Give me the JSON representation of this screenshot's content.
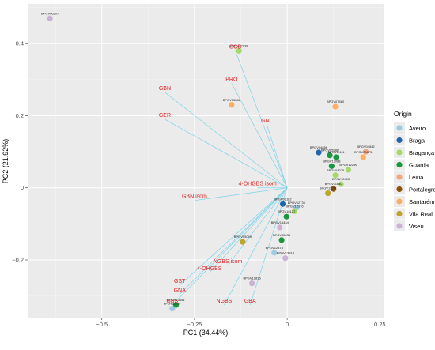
{
  "chart_data": {
    "type": "scatter",
    "subtype": "pca-biplot",
    "xlabel": "PC1 (34.44%)",
    "ylabel": "PC2 (21.92%)",
    "xlim": [
      -0.7,
      0.26
    ],
    "ylim": [
      -0.36,
      0.51
    ],
    "x_ticks": [
      -0.5,
      -0.25,
      0,
      0.25
    ],
    "x_tick_labels": [
      "−0.5",
      "−0.25",
      "0",
      "0.25"
    ],
    "y_ticks": [
      -0.2,
      0,
      0.2,
      0.4
    ],
    "y_tick_labels": [
      "−0.2",
      "0",
      "0.2",
      "0.4"
    ],
    "grid": true,
    "legend": {
      "title": "Origin",
      "position": "right",
      "entries": [
        {
          "name": "Aveiro",
          "color": "#9ecae1"
        },
        {
          "name": "Braga",
          "color": "#2166ac"
        },
        {
          "name": "Bragança",
          "color": "#a6d96a"
        },
        {
          "name": "Guarda",
          "color": "#1a9641"
        },
        {
          "name": "Leiria",
          "color": "#f4a582"
        },
        {
          "name": "Portalegre",
          "color": "#8c510a"
        },
        {
          "name": "Santarém",
          "color": "#fdae61"
        },
        {
          "name": "Vila Real",
          "color": "#bfa32a"
        },
        {
          "name": "Viseu",
          "color": "#cab2d6"
        }
      ]
    },
    "points": [
      {
        "label": "BPGV06207",
        "x": -0.64,
        "y": 0.47,
        "origin": "Viseu"
      },
      {
        "label": "BPGV12239",
        "x": -0.13,
        "y": 0.38,
        "origin": "Bragança"
      },
      {
        "label": "BPGV07480",
        "x": 0.13,
        "y": 0.225,
        "origin": "Santarém"
      },
      {
        "label": "BPGV05888",
        "x": -0.15,
        "y": 0.23,
        "origin": "Santarém"
      },
      {
        "label": "BPGV04856",
        "x": 0.085,
        "y": 0.098,
        "origin": "Braga"
      },
      {
        "label": "BPGV05980",
        "x": 0.115,
        "y": 0.09,
        "origin": "Guarda"
      },
      {
        "label": "BPGV11111",
        "x": 0.132,
        "y": 0.085,
        "origin": "Guarda"
      },
      {
        "label": "BPGV13083",
        "x": 0.12,
        "y": 0.06,
        "origin": "Guarda"
      },
      {
        "label": "BPGV04275",
        "x": 0.13,
        "y": 0.035,
        "origin": "Bragança"
      },
      {
        "label": "BPGV04542",
        "x": 0.212,
        "y": 0.1,
        "origin": "Leiria"
      },
      {
        "label": "BPGV00875",
        "x": 0.205,
        "y": 0.085,
        "origin": "Santarém"
      },
      {
        "label": "BPGV12296",
        "x": 0.165,
        "y": 0.05,
        "origin": "Bragança"
      },
      {
        "label": "BPGV12405",
        "x": 0.145,
        "y": 0.01,
        "origin": "Bragança"
      },
      {
        "label": "BPGV11640",
        "x": 0.125,
        "y": -0.003,
        "origin": "Portalegre"
      },
      {
        "label": "BPGV11177",
        "x": 0.11,
        "y": -0.015,
        "origin": "Vila Real"
      },
      {
        "label": "BPGV12736",
        "x": 0.025,
        "y": -0.055,
        "origin": "Aveiro"
      },
      {
        "label": "BPGV12376",
        "x": 0.02,
        "y": -0.065,
        "origin": "Bragança"
      },
      {
        "label": "BPGV02182",
        "x": -0.012,
        "y": -0.045,
        "origin": "Braga"
      },
      {
        "label": "BPGV16127",
        "x": -0.002,
        "y": -0.08,
        "origin": "Guarda"
      },
      {
        "label": "BPGV16434",
        "x": -0.02,
        "y": -0.11,
        "origin": "Viseu"
      },
      {
        "label": "BPGV05049",
        "x": -0.12,
        "y": -0.15,
        "origin": "Vila Real"
      },
      {
        "label": "BPGV05036",
        "x": -0.015,
        "y": -0.145,
        "origin": "Guarda"
      },
      {
        "label": "BPGV12878",
        "x": -0.035,
        "y": -0.18,
        "origin": "Aveiro"
      },
      {
        "label": "BPGV13914",
        "x": -0.005,
        "y": -0.195,
        "origin": "Viseu"
      },
      {
        "label": "BPGV12836",
        "x": -0.095,
        "y": -0.265,
        "origin": "Viseu"
      },
      {
        "label": "BPGV13051",
        "x": -0.3,
        "y": -0.325,
        "origin": "Guarda"
      },
      {
        "label": "BPGV12737",
        "x": -0.31,
        "y": -0.335,
        "origin": "Aveiro"
      }
    ],
    "loadings": [
      {
        "label": "GGB",
        "x": -0.14,
        "y": 0.38
      },
      {
        "label": "PRO",
        "x": -0.15,
        "y": 0.29
      },
      {
        "label": "GBN",
        "x": -0.33,
        "y": 0.265
      },
      {
        "label": "GER",
        "x": -0.33,
        "y": 0.19
      },
      {
        "label": "GNL",
        "x": -0.055,
        "y": 0.175
      },
      {
        "label": "4-OHGBS isom",
        "x": -0.08,
        "y": 0.0
      },
      {
        "label": "GBN isom",
        "x": -0.25,
        "y": -0.035
      },
      {
        "label": "NGBS isom",
        "x": -0.16,
        "y": -0.215
      },
      {
        "label": "4-OHGBS",
        "x": -0.21,
        "y": -0.235
      },
      {
        "label": "GST",
        "x": -0.29,
        "y": -0.27
      },
      {
        "label": "GNA",
        "x": -0.29,
        "y": -0.295
      },
      {
        "label": "NGBS",
        "x": -0.17,
        "y": -0.325
      },
      {
        "label": "GBA",
        "x": -0.1,
        "y": -0.325
      },
      {
        "label": "GBS",
        "x": -0.31,
        "y": -0.325
      }
    ]
  }
}
